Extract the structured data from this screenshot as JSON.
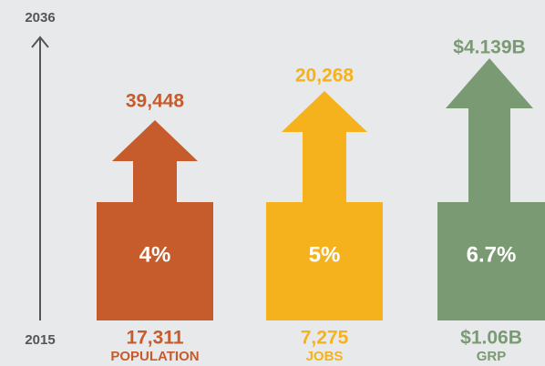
{
  "axis": {
    "top": "2036",
    "bottom": "2015"
  },
  "columns": [
    {
      "top_value": "39,448",
      "rate": "4%",
      "base_value": "17,311",
      "label": "POPULATION"
    },
    {
      "top_value": "20,268",
      "rate": "5%",
      "base_value": "7,275",
      "label": "JOBS"
    },
    {
      "top_value": "$4.139B",
      "rate": "6.7%",
      "base_value": "$1.06B",
      "label": "GRP"
    }
  ]
}
